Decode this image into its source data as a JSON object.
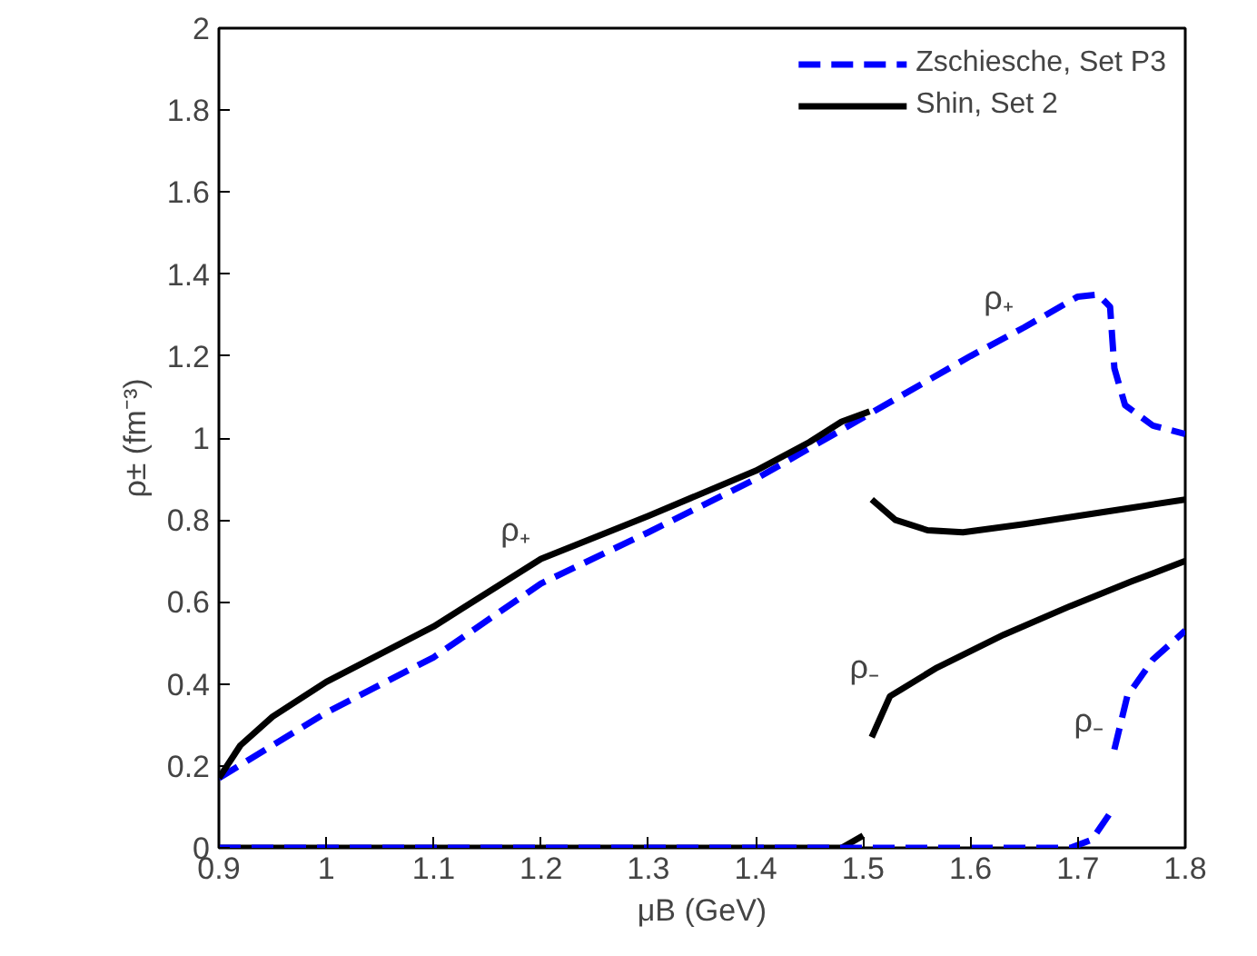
{
  "chart_data": {
    "type": "line",
    "xlabel": "μB (GeV)",
    "ylabel": "ρ± (fm⁻³)",
    "xlim": [
      0.9,
      1.8
    ],
    "ylim": [
      0,
      2
    ],
    "xticks": [
      {
        "value": 0.9,
        "label": "0.9"
      },
      1,
      1.1,
      1.2,
      1.3,
      1.4,
      1.5,
      1.6,
      1.7,
      1.8
    ],
    "yticks": [
      0,
      0.2,
      0.4,
      0.6,
      0.8,
      1,
      1.2,
      1.4,
      1.6,
      1.8,
      2
    ],
    "grid": false,
    "legend": "top right",
    "series": [
      {
        "name": "Zschiesche, Set P3",
        "color": "#0000ff",
        "line_style": "dashed",
        "x": [
          0.9,
          1.0,
          1.1,
          1.2,
          1.3,
          1.4,
          1.5,
          1.6,
          1.65,
          1.7,
          1.719,
          1.73,
          1.734,
          1.744,
          1.77,
          1.8
        ],
        "values": [
          0.17,
          0.33,
          0.465,
          0.645,
          0.77,
          0.9,
          1.05,
          1.2,
          1.27,
          1.345,
          1.35,
          1.32,
          1.17,
          1.08,
          1.03,
          1.01
        ]
      },
      {
        "name": "Shin, Set 2",
        "color": "#000000",
        "line_style": "solid",
        "x": [
          0.9,
          0.92,
          0.95,
          1.0,
          1.1,
          1.2,
          1.3,
          1.4,
          1.45,
          1.48,
          1.506
        ],
        "values": [
          0.17,
          0.25,
          0.32,
          0.405,
          0.54,
          0.705,
          0.81,
          0.92,
          0.99,
          1.04,
          1.065
        ]
      },
      {
        "color": "#000000",
        "line_style": "solid",
        "x": [
          1.508,
          1.53,
          1.56,
          1.593,
          1.65,
          1.7,
          1.75,
          1.8
        ],
        "values": [
          0.85,
          0.8,
          0.775,
          0.77,
          0.79,
          0.81,
          0.83,
          0.85
        ]
      },
      {
        "color": "#000000",
        "line_style": "solid",
        "x": [
          1.508,
          1.525,
          1.569,
          1.631,
          1.693,
          1.75,
          1.8
        ],
        "values": [
          0.27,
          0.37,
          0.44,
          0.52,
          0.59,
          0.65,
          0.7
        ]
      },
      {
        "color": "#000000",
        "line_style": "solid",
        "x": [
          0.9,
          1.48,
          1.5
        ],
        "values": [
          0,
          0,
          0.03
        ]
      },
      {
        "color": "#0000ff",
        "line_style": "dashed",
        "x": [
          0.9,
          1.5,
          1.693,
          1.713,
          1.734
        ],
        "values": [
          0,
          0,
          0,
          0.02,
          0.1
        ]
      },
      {
        "color": "#0000ff",
        "line_style": "dashed",
        "x": [
          1.734,
          1.746,
          1.77,
          1.8
        ],
        "values": [
          0.24,
          0.37,
          0.46,
          0.53
        ]
      }
    ],
    "annotations": [
      {
        "text": "ρ₊",
        "x": 1.65,
        "y": 1.27
      },
      {
        "text": "ρ₊",
        "x": 1.2,
        "y": 0.705
      },
      {
        "text": "ρ₋",
        "x": 1.525,
        "y": 0.37
      },
      {
        "text": "ρ₋",
        "x": 1.734,
        "y": 0.24
      }
    ]
  }
}
